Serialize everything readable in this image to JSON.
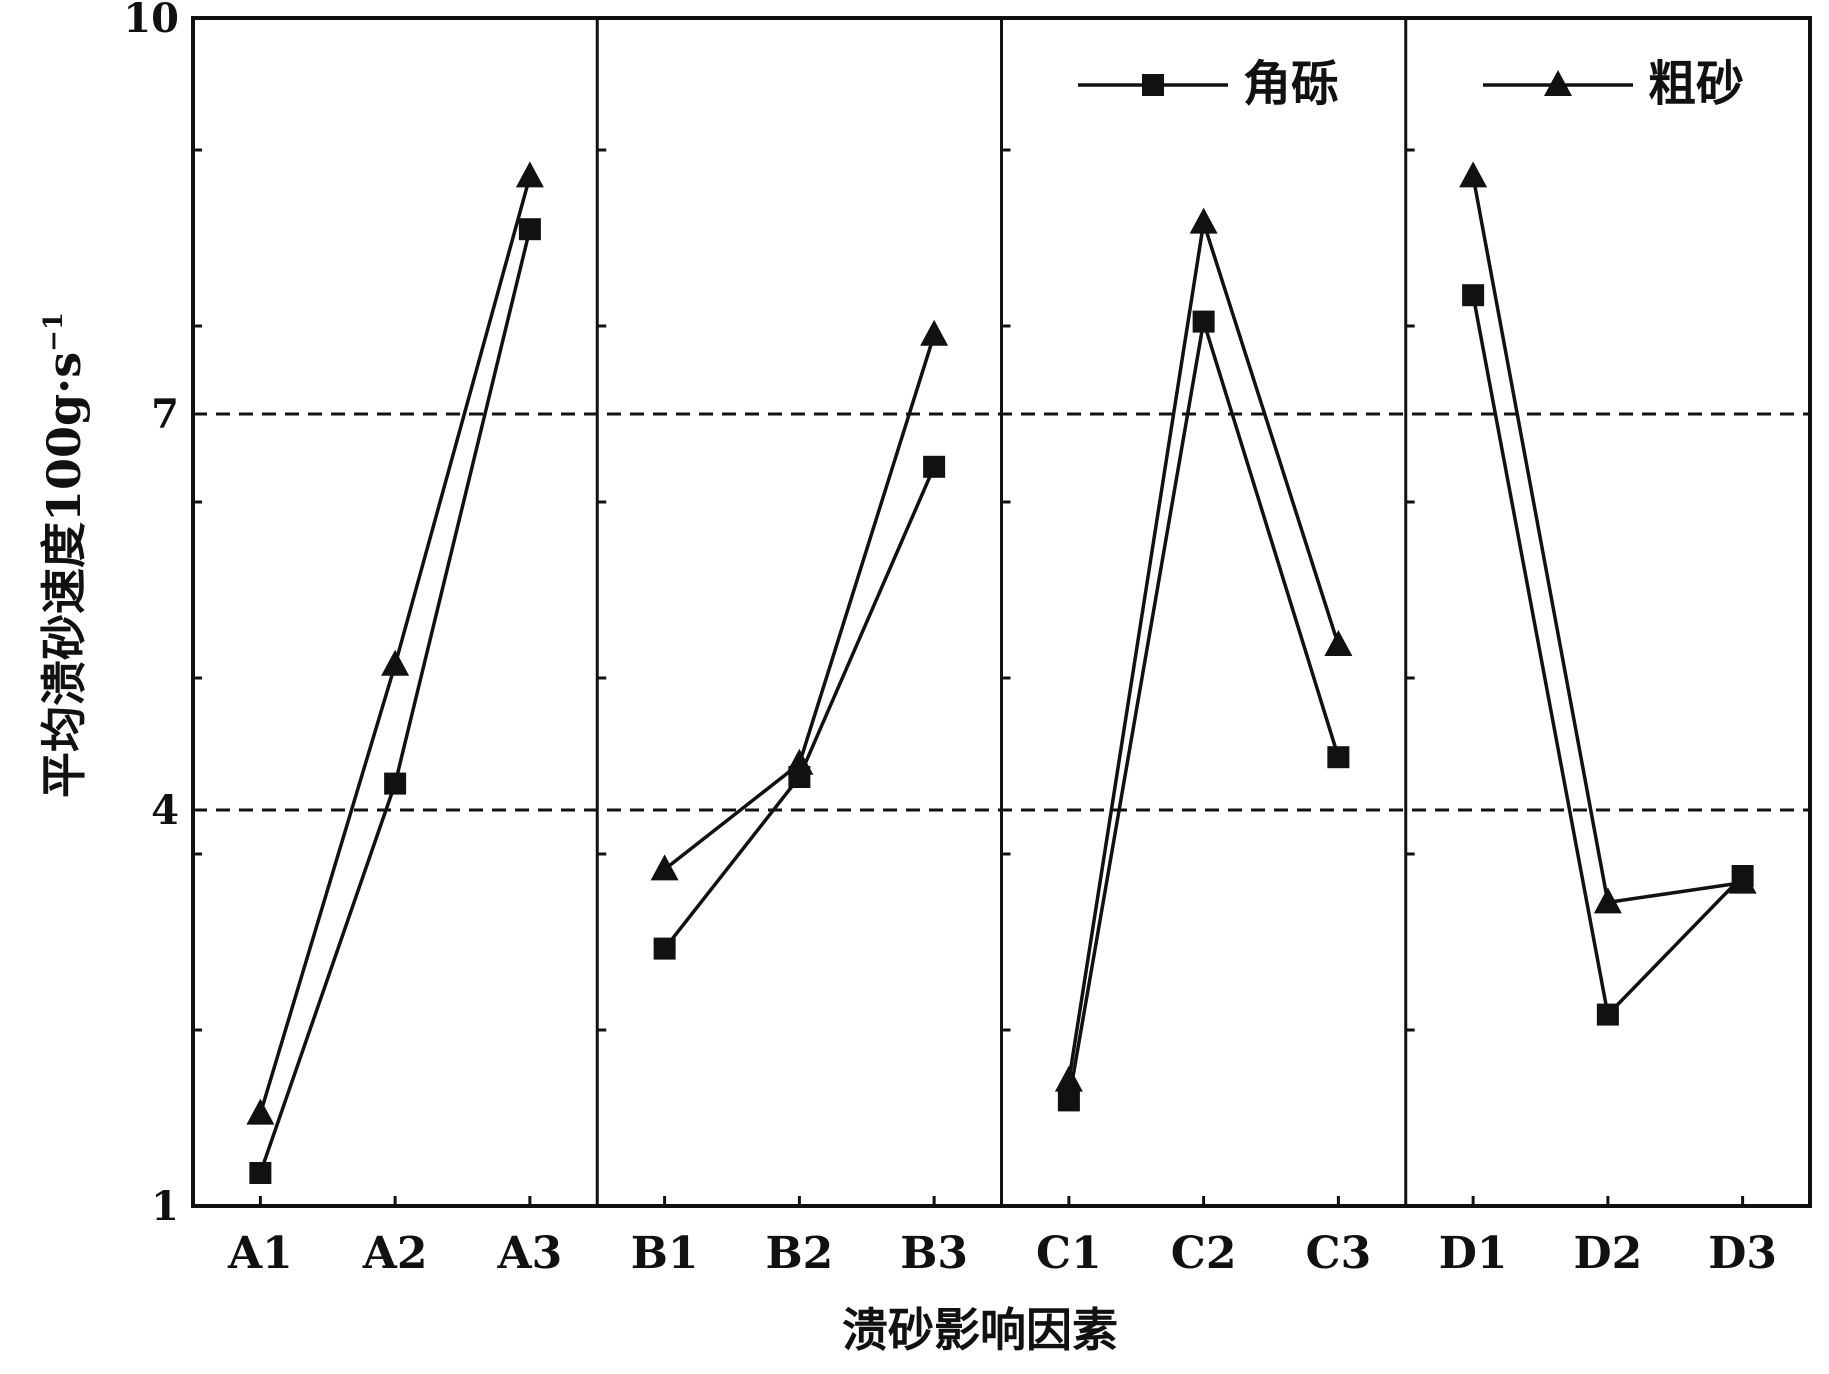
{
  "chart_data": {
    "type": "line",
    "ylabel_main": "平均溃砂速度100g·s",
    "ylabel_sup": "−1",
    "xlabel": "溃砂影响因素",
    "ylim": [
      1,
      10
    ],
    "yticks_labeled": [
      "1",
      "4",
      "7",
      "10"
    ],
    "reference_lines": [
      4,
      7
    ],
    "legend_position": "top-right",
    "groups": [
      {
        "categories": [
          "A1",
          "A2",
          "A3"
        ]
      },
      {
        "categories": [
          "B1",
          "B2",
          "B3"
        ]
      },
      {
        "categories": [
          "C1",
          "C2",
          "C3"
        ]
      },
      {
        "categories": [
          "D1",
          "D2",
          "D3"
        ]
      }
    ],
    "series": [
      {
        "name": "角砾",
        "marker": "square",
        "values": [
          [
            1.25,
            4.2,
            8.4
          ],
          [
            2.95,
            4.25,
            6.6
          ],
          [
            1.8,
            7.7,
            4.4
          ],
          [
            7.9,
            2.45,
            3.5
          ]
        ]
      },
      {
        "name": "粗砂",
        "marker": "triangle",
        "values": [
          [
            1.7,
            5.1,
            8.8
          ],
          [
            3.55,
            4.35,
            7.6
          ],
          [
            1.95,
            8.45,
            5.25
          ],
          [
            8.8,
            3.3,
            3.45
          ]
        ]
      }
    ]
  }
}
